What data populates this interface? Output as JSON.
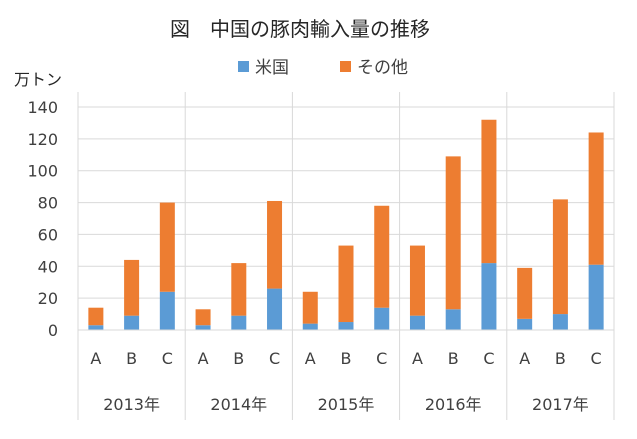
{
  "chart_data": {
    "type": "bar",
    "stacked": true,
    "title": "図　中国の豚肉輸入量の推移",
    "unit_label": "万トン",
    "legend_position": "top",
    "grid": true,
    "ylim": [
      0,
      140
    ],
    "yticks": [
      0,
      20,
      40,
      60,
      80,
      100,
      120,
      140
    ],
    "categories": [
      "A",
      "B",
      "C",
      "A",
      "B",
      "C",
      "A",
      "B",
      "C",
      "A",
      "B",
      "C",
      "A",
      "B",
      "C"
    ],
    "groups": [
      {
        "label": "2013年",
        "categories": [
          "A",
          "B",
          "C"
        ]
      },
      {
        "label": "2014年",
        "categories": [
          "A",
          "B",
          "C"
        ]
      },
      {
        "label": "2015年",
        "categories": [
          "A",
          "B",
          "C"
        ]
      },
      {
        "label": "2016年",
        "categories": [
          "A",
          "B",
          "C"
        ]
      },
      {
        "label": "2017年",
        "categories": [
          "A",
          "B",
          "C"
        ]
      }
    ],
    "series": [
      {
        "name": "米国",
        "color": "#5b9bd5",
        "values": [
          3,
          9,
          24,
          3,
          9,
          26,
          4,
          5,
          14,
          9,
          13,
          42,
          7,
          10,
          41
        ]
      },
      {
        "name": "その他",
        "color": "#ed7d31",
        "values": [
          11,
          35,
          56,
          10,
          33,
          55,
          20,
          48,
          64,
          44,
          96,
          90,
          32,
          72,
          83
        ]
      }
    ]
  }
}
